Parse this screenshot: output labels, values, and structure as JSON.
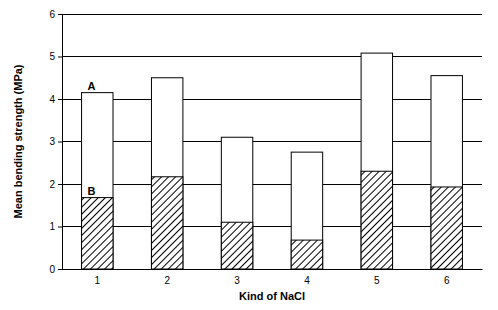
{
  "chart_data": {
    "type": "bar",
    "x_label": "Kind of NaCl",
    "y_label": "Mean bending strength (MPa)",
    "categories": [
      "1",
      "2",
      "3",
      "4",
      "5",
      "6"
    ],
    "series": [
      {
        "name": "A",
        "color": "#ffffff",
        "values": [
          4.15,
          4.5,
          3.1,
          2.75,
          5.08,
          4.55
        ]
      },
      {
        "name": "B",
        "color": "#000000",
        "values": [
          1.68,
          2.17,
          1.1,
          0.68,
          2.3,
          1.93
        ]
      }
    ],
    "stacked": false,
    "ylim": [
      0,
      6
    ],
    "yticks": [
      0,
      1,
      2,
      3,
      4,
      5,
      6
    ],
    "grid": true
  }
}
